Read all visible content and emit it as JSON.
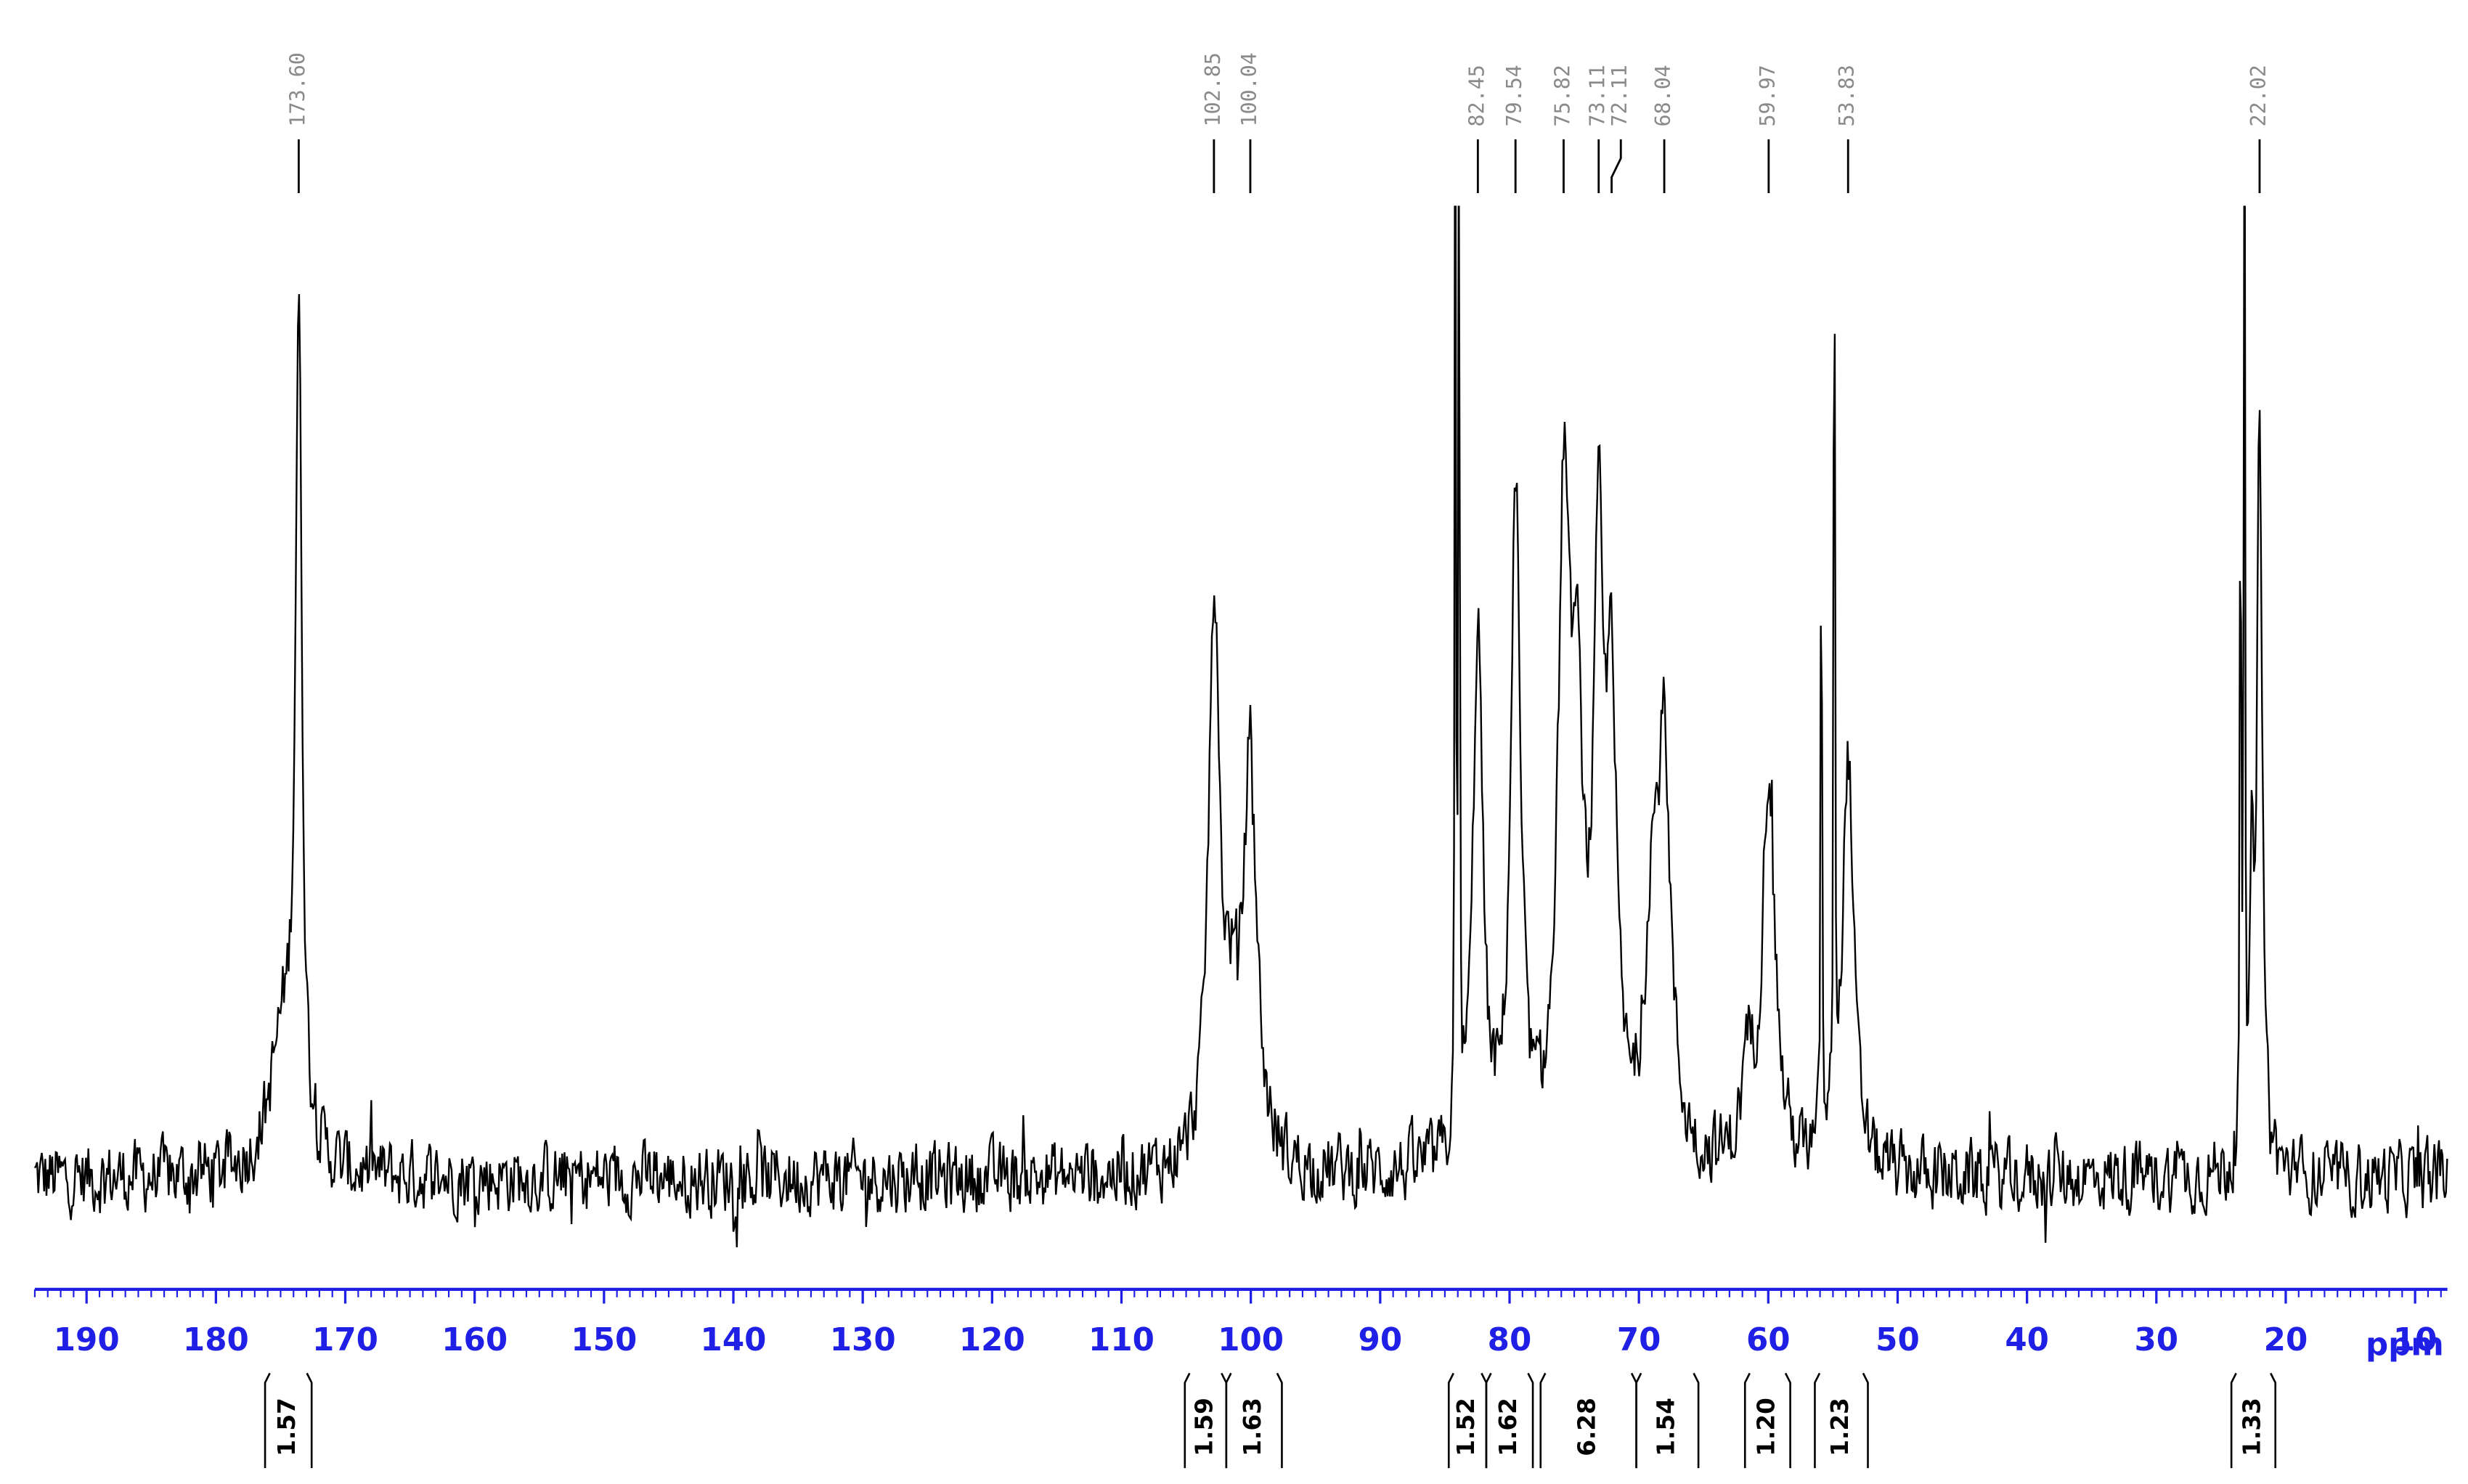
{
  "chart_data": {
    "type": "nmr",
    "xlabel": "ppm",
    "xlim": [
      194,
      7.5
    ],
    "xticks": [
      190,
      180,
      170,
      160,
      150,
      140,
      130,
      120,
      110,
      100,
      90,
      80,
      70,
      60,
      50,
      40,
      30,
      20,
      10
    ],
    "minor_tick_step": 1,
    "axis_color": "#1f1fe6",
    "trace_color": "#000000",
    "peaks": [
      {
        "position": 173.6,
        "label": "173.60",
        "height": 84,
        "width": 0.3
      },
      {
        "position": 102.85,
        "label": "102.85",
        "height": 57,
        "width": 0.5
      },
      {
        "position": 100.04,
        "label": "100.04",
        "height": 41,
        "width": 0.6
      },
      {
        "position": 82.45,
        "label": "82.45",
        "height": 55,
        "width": 0.45
      },
      {
        "position": 79.54,
        "label": "79.54",
        "height": 67,
        "width": 0.45
      },
      {
        "position": 75.82,
        "label": "75.82",
        "height": 62,
        "width": 0.5
      },
      {
        "position": 73.11,
        "label": "73.11",
        "height": 56,
        "width": 0.45
      },
      {
        "position": 72.11,
        "label": "72.11",
        "height": 45,
        "width": 0.45
      },
      {
        "position": 68.04,
        "label": "68.04",
        "height": 40,
        "width": 0.6
      },
      {
        "position": 59.97,
        "label": "59.97",
        "height": 41,
        "width": 0.6
      },
      {
        "position": 53.83,
        "label": "53.83",
        "height": 43,
        "width": 0.5
      },
      {
        "position": 22.02,
        "label": "22.02",
        "height": 77,
        "width": 0.25
      }
    ],
    "unlabeled_peaks": [
      {
        "position": 174.8,
        "height": 14,
        "width": 1.2
      },
      {
        "position": 101.5,
        "height": 12,
        "width": 0.8
      },
      {
        "position": 74.8,
        "height": 40,
        "width": 0.6
      },
      {
        "position": 69.0,
        "height": 22,
        "width": 0.6
      },
      {
        "position": 61.6,
        "height": 9,
        "width": 0.5
      },
      {
        "position": 84.2,
        "height": 130,
        "width": 0.05
      },
      {
        "position": 83.9,
        "height": 130,
        "width": 0.05
      },
      {
        "position": 55.9,
        "height": 89,
        "width": 0.05
      },
      {
        "position": 54.9,
        "height": 130,
        "width": 0.05
      },
      {
        "position": 23.5,
        "height": 93,
        "width": 0.05
      },
      {
        "position": 23.2,
        "height": 130,
        "width": 0.05
      },
      {
        "position": 22.6,
        "height": 30,
        "width": 0.15
      }
    ],
    "integrals": [
      {
        "value": 1.57,
        "range": [
          176.2,
          172.6
        ]
      },
      {
        "value": 1.59,
        "range": [
          105.1,
          101.9
        ]
      },
      {
        "value": 1.63,
        "range": [
          101.9,
          97.6
        ]
      },
      {
        "value": 1.52,
        "range": [
          84.7,
          81.8
        ]
      },
      {
        "value": 1.62,
        "range": [
          81.8,
          78.2
        ]
      },
      {
        "value": 6.28,
        "range": [
          77.6,
          70.2
        ]
      },
      {
        "value": 1.54,
        "range": [
          70.2,
          65.4
        ]
      },
      {
        "value": 1.2,
        "label": "1.20",
        "range": [
          61.8,
          58.3
        ]
      },
      {
        "value": 1.23,
        "range": [
          56.4,
          52.3
        ]
      },
      {
        "value": 1.33,
        "range": [
          24.2,
          20.8
        ]
      }
    ]
  }
}
